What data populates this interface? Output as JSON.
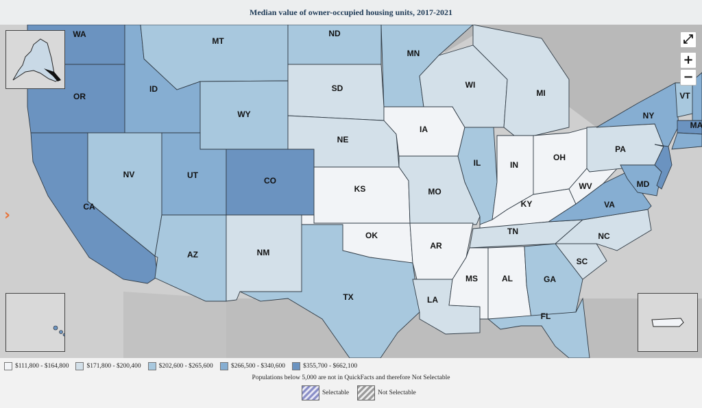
{
  "title": "Median value of owner-occupied housing units, 2017-2021",
  "colors": {
    "c1": "#f2f4f7",
    "c2": "#d3e0e9",
    "c3": "#a8c8de",
    "c4": "#86aed2",
    "c5": "#6b93c0",
    "land": "#c9c9c9",
    "water": "#b8b8b8"
  },
  "states": {
    "WA": "WA",
    "OR": "OR",
    "CA": "CA",
    "ID": "ID",
    "NV": "NV",
    "MT": "MT",
    "WY": "WY",
    "UT": "UT",
    "CO": "CO",
    "AZ": "AZ",
    "NM": "NM",
    "ND": "ND",
    "SD": "SD",
    "NE": "NE",
    "KS": "KS",
    "OK": "OK",
    "TX": "TX",
    "MN": "MN",
    "IA": "IA",
    "MO": "MO",
    "AR": "AR",
    "LA": "LA",
    "WI": "WI",
    "IL": "IL",
    "MI": "MI",
    "IN": "IN",
    "OH": "OH",
    "KY": "KY",
    "TN": "TN",
    "MS": "MS",
    "AL": "AL",
    "GA": "GA",
    "FL": "FL",
    "SC": "SC",
    "NC": "NC",
    "VA": "VA",
    "WV": "WV",
    "PA": "PA",
    "NY": "NY",
    "MD": "MD",
    "VT": "VT",
    "MA": "MA"
  },
  "controls": {
    "fullscreen": "⤢",
    "zoom_in": "+",
    "zoom_out": "−",
    "side_panel": "›"
  },
  "legend": {
    "bins": [
      {
        "label": "$111,800 - $164,800",
        "color": "#f2f4f7"
      },
      {
        "label": "$171,800 - $200,400",
        "color": "#d3e0e9"
      },
      {
        "label": "$202,600 - $265,600",
        "color": "#a8c8de"
      },
      {
        "label": "$266,500 - $340,600",
        "color": "#86aed2"
      },
      {
        "label": "$355,700 - $662,100",
        "color": "#6b93c0"
      }
    ],
    "note": "Populations below 5,000 are not in QuickFacts and therefore Not Selectable",
    "selectable": "Selectable",
    "not_selectable": "Not Selectable"
  }
}
